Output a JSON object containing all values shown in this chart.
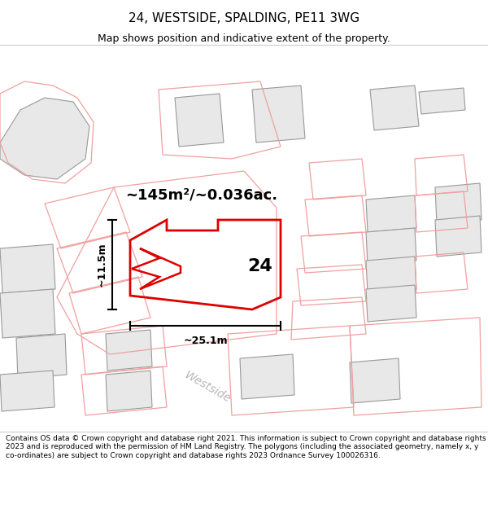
{
  "title": "24, WESTSIDE, SPALDING, PE11 3WG",
  "subtitle": "Map shows position and indicative extent of the property.",
  "footer": "Contains OS data © Crown copyright and database right 2021. This information is subject to Crown copyright and database rights 2023 and is reproduced with the permission of HM Land Registry. The polygons (including the associated geometry, namely x, y co-ordinates) are subject to Crown copyright and database rights 2023 Ordnance Survey 100026316.",
  "area_label": "~145m²/~0.036ac.",
  "width_label": "~25.1m",
  "height_label": "~11.5m",
  "number_label": "24",
  "road_label": "Westside",
  "map_bg": "#ffffff",
  "gray_fill": "#e8e8e8",
  "gray_edge": "#999999",
  "pink_edge": "#f0a0a0",
  "property_red": "#dd0000",
  "title_fontsize": 11,
  "subtitle_fontsize": 9,
  "footer_fontsize": 6.5,
  "area_fontsize": 13,
  "number_fontsize": 16,
  "dim_fontsize": 9
}
